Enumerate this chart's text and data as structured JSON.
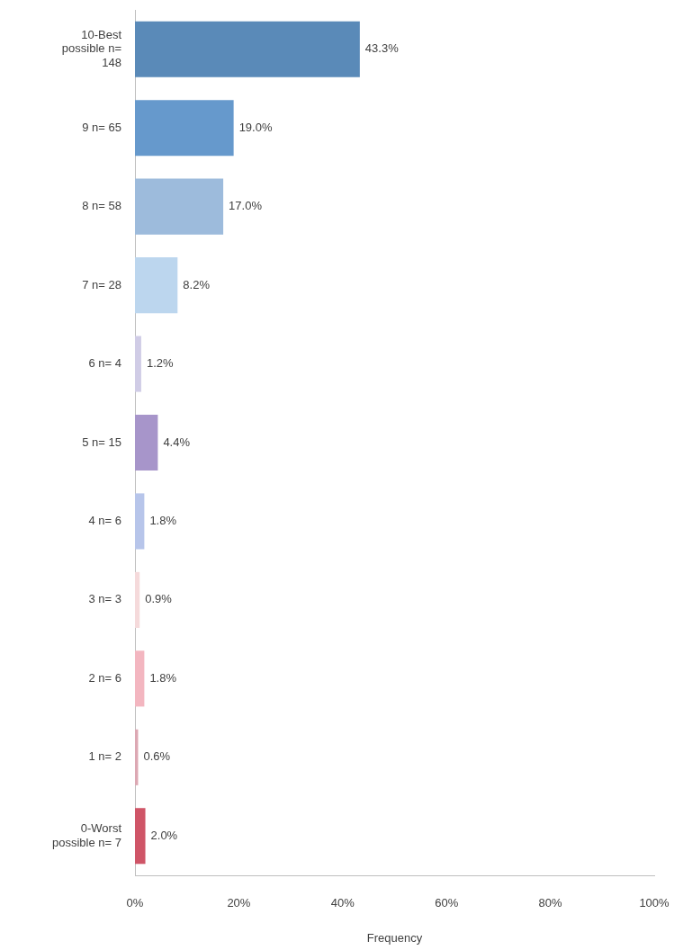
{
  "chart_data": {
    "type": "bar",
    "orientation": "horizontal",
    "xlabel": "Frequency",
    "categories": [
      "10-Best possible n= 148",
      "9 n= 65",
      "8 n= 58",
      "7 n= 28",
      "6 n= 4",
      "5 n= 15",
      "4 n= 6",
      "3 n= 3",
      "2 n= 6",
      "1 n= 2",
      "0-Worst possible n= 7"
    ],
    "values": [
      43.3,
      19.0,
      17.0,
      8.2,
      1.2,
      4.4,
      1.8,
      0.9,
      1.8,
      0.6,
      2.0
    ],
    "colors": [
      "#5a8ab8",
      "#6699cc",
      "#9dbbdc",
      "#bcd6ee",
      "#d0cce6",
      "#a795ca",
      "#b7c5ea",
      "#f5dadb",
      "#f3b6c0",
      "#dca8b3",
      "#cf5567"
    ],
    "value_labels": [
      "43.3%",
      "19.0%",
      "17.0%",
      "8.2%",
      "1.2%",
      "4.4%",
      "1.8%",
      "0.9%",
      "1.8%",
      "0.6%",
      "2.0%"
    ],
    "xlim": [
      0,
      100
    ],
    "xticks": [
      {
        "value": 0,
        "label": "0%"
      },
      {
        "value": 20,
        "label": "20%"
      },
      {
        "value": 40,
        "label": "40%"
      },
      {
        "value": 60,
        "label": "60%"
      },
      {
        "value": 80,
        "label": "80%"
      },
      {
        "value": 100,
        "label": "100%"
      }
    ]
  }
}
